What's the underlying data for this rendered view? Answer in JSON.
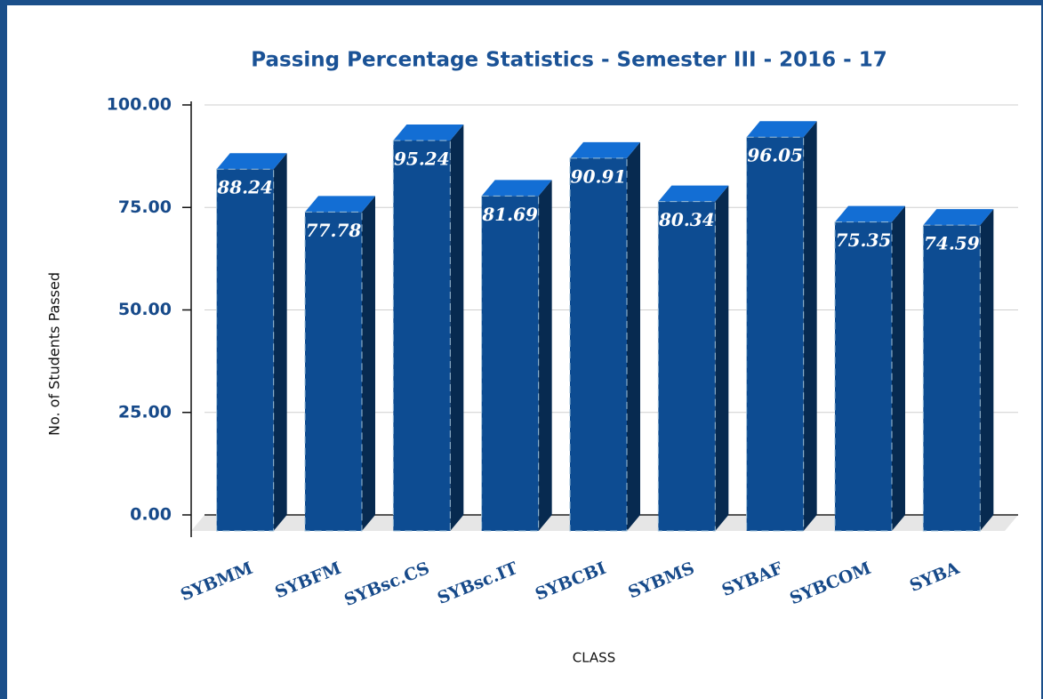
{
  "chart_data": {
    "type": "bar3d",
    "title": "Passing Percentage Statistics - Semester III - 2016 - 17",
    "x_label": "CLASS",
    "y_label": "No. of Students Passed",
    "categories": [
      "SYBMM",
      "SYBFM",
      "SYBsc.CS",
      "SYBsc.IT",
      "SYBCBI",
      "SYBMS",
      "SYBAF",
      "SYBCOM",
      "SYBA"
    ],
    "values": [
      88.24,
      77.78,
      95.24,
      81.69,
      90.91,
      80.34,
      96.05,
      75.35,
      74.59
    ],
    "color": "#0d4c92",
    "ylim": [
      0,
      100
    ],
    "yticks": [
      {
        "value": 0,
        "label": "0.00"
      },
      {
        "value": 25,
        "label": "25.00"
      },
      {
        "value": 50,
        "label": "50.00"
      },
      {
        "value": 75,
        "label": "75.00"
      },
      {
        "value": 100,
        "label": "100.00"
      }
    ],
    "grid": true
  }
}
